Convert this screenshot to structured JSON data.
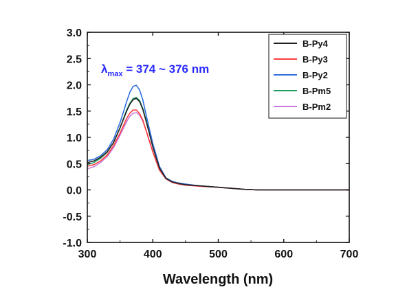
{
  "chart_data": {
    "type": "line",
    "title": "",
    "xlabel": "Wavelength (nm)",
    "ylabel": "",
    "xlim": [
      300,
      700
    ],
    "ylim": [
      -1.0,
      3.0
    ],
    "x_ticks": [
      "300",
      "400",
      "500",
      "600",
      "700"
    ],
    "y_ticks": [
      "-1.0",
      "-0.5",
      "0.0",
      "0.5",
      "1.0",
      "1.5",
      "2.0",
      "2.5",
      "3.0"
    ],
    "grid": false,
    "legend_position": "top-right",
    "annotation": {
      "symbol": "λ",
      "subscript": "max",
      "text": " = 374 ~ 376 nm",
      "color": "#2a2aff"
    },
    "x": [
      300,
      310,
      320,
      330,
      340,
      350,
      360,
      365,
      370,
      375,
      380,
      385,
      390,
      400,
      410,
      420,
      430,
      440,
      450,
      470,
      500,
      520,
      540,
      560,
      600,
      650,
      700
    ],
    "series": [
      {
        "name": "B-Py4",
        "color": "#222222",
        "values": [
          0.52,
          0.55,
          0.62,
          0.72,
          0.9,
          1.18,
          1.5,
          1.63,
          1.72,
          1.74,
          1.68,
          1.52,
          1.3,
          0.82,
          0.42,
          0.22,
          0.15,
          0.12,
          0.1,
          0.08,
          0.05,
          0.03,
          0.01,
          0.0,
          0.0,
          0.0,
          0.0
        ]
      },
      {
        "name": "B-Py3",
        "color": "#ff3b3b",
        "values": [
          0.45,
          0.48,
          0.55,
          0.66,
          0.84,
          1.08,
          1.36,
          1.46,
          1.52,
          1.52,
          1.45,
          1.32,
          1.12,
          0.72,
          0.38,
          0.21,
          0.14,
          0.11,
          0.09,
          0.07,
          0.05,
          0.03,
          0.01,
          0.0,
          0.0,
          0.0,
          0.0
        ]
      },
      {
        "name": "B-Py2",
        "color": "#2f6fe0",
        "values": [
          0.56,
          0.58,
          0.65,
          0.76,
          0.96,
          1.28,
          1.68,
          1.86,
          1.97,
          1.99,
          1.9,
          1.7,
          1.42,
          0.88,
          0.45,
          0.23,
          0.16,
          0.13,
          0.11,
          0.08,
          0.05,
          0.03,
          0.01,
          0.0,
          0.0,
          0.0,
          0.0
        ]
      },
      {
        "name": "B-Pm5",
        "color": "#1f9e64",
        "values": [
          0.48,
          0.52,
          0.6,
          0.71,
          0.9,
          1.18,
          1.52,
          1.65,
          1.74,
          1.76,
          1.7,
          1.54,
          1.32,
          0.83,
          0.42,
          0.22,
          0.15,
          0.12,
          0.1,
          0.08,
          0.05,
          0.03,
          0.01,
          0.0,
          0.0,
          0.0,
          0.0
        ]
      },
      {
        "name": "B-Pm2",
        "color": "#c77ddd",
        "values": [
          0.4,
          0.44,
          0.52,
          0.63,
          0.8,
          1.04,
          1.3,
          1.4,
          1.46,
          1.47,
          1.42,
          1.3,
          1.12,
          0.73,
          0.38,
          0.21,
          0.14,
          0.11,
          0.09,
          0.07,
          0.05,
          0.03,
          0.01,
          0.0,
          0.0,
          0.0,
          0.0
        ]
      }
    ]
  }
}
